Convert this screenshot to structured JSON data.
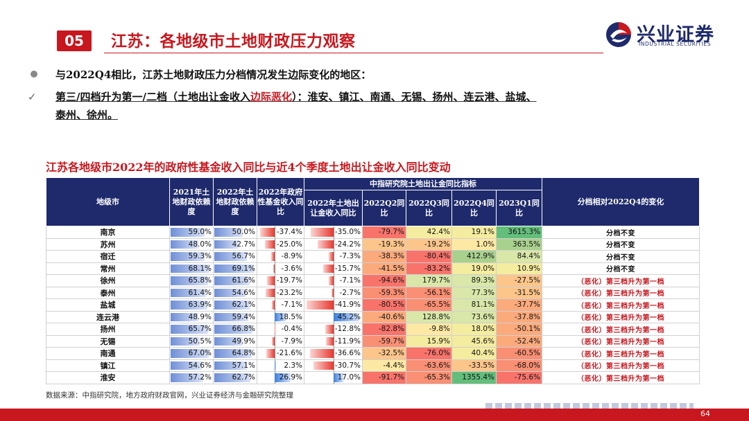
{
  "header": {
    "section_no": "05",
    "title": "江苏：各地级市土地财政压力观察",
    "logo_name": "兴业证券",
    "logo_sub": "INDUSTRIAL SECURITIES"
  },
  "bullets": {
    "b1": "与2022Q4相比，江苏土地财政压力分档情况发生边际变化的地区：",
    "b2_check": "✓",
    "b2_pre": "第三/四档升为第一/二档（土地出让金收入",
    "b2_red": "边际恶化",
    "b2_post": "）：淮安、镇江、南通、无锡、扬州、连云港、盐城、",
    "b2_line2": "泰州、徐州。"
  },
  "table": {
    "title": "江苏各地级市2022年的政府性基金收入同比与近4个季度土地出让金收入同比变动",
    "headers": {
      "city": "地级市",
      "dep2021": "2021年土地财政依赖度",
      "dep2022": "2022年土地财政依赖度",
      "fund2022": "2022年政府性基金收入同比",
      "group": "中指研究院土地出让金同比指标",
      "land2022": "2022年土地出让金收入同比",
      "q2": "2022Q2同比",
      "q3": "2022Q3同比",
      "q4": "2022Q4同比",
      "q1": "2023Q1同比",
      "change": "分档相对2022Q4的变化"
    },
    "rows": [
      {
        "city": "南京",
        "d21": "59.0%",
        "d21v": 59.0,
        "d22": "50.0%",
        "d22v": 50.0,
        "fund": "-37.4%",
        "fundv": -37.4,
        "land": "-35.0%",
        "landv": -35.0,
        "q2": "-79.7%",
        "q3": "42.4%",
        "q4": "19.1%",
        "q1": "3615.3%",
        "chg": "分档不变",
        "bad": false
      },
      {
        "city": "苏州",
        "d21": "48.0%",
        "d21v": 48.0,
        "d22": "42.7%",
        "d22v": 42.7,
        "fund": "-25.0%",
        "fundv": -25.0,
        "land": "-24.2%",
        "landv": -24.2,
        "q2": "-19.3%",
        "q3": "-19.2%",
        "q4": "1.0%",
        "q1": "363.5%",
        "chg": "分档不变",
        "bad": false
      },
      {
        "city": "宿迁",
        "d21": "59.3%",
        "d21v": 59.3,
        "d22": "56.7%",
        "d22v": 56.7,
        "fund": "-8.9%",
        "fundv": -8.9,
        "land": "-7.3%",
        "landv": -7.3,
        "q2": "-38.3%",
        "q3": "-80.4%",
        "q4": "412.9%",
        "q1": "84.4%",
        "chg": "分档不变",
        "bad": false
      },
      {
        "city": "常州",
        "d21": "68.1%",
        "d21v": 68.1,
        "d22": "69.1%",
        "d22v": 69.1,
        "fund": "-3.6%",
        "fundv": -3.6,
        "land": "-15.7%",
        "landv": -15.7,
        "q2": "-41.5%",
        "q3": "-83.2%",
        "q4": "19.0%",
        "q1": "10.9%",
        "chg": "分档不变",
        "bad": false
      },
      {
        "city": "徐州",
        "d21": "65.8%",
        "d21v": 65.8,
        "d22": "61.6%",
        "d22v": 61.6,
        "fund": "-19.7%",
        "fundv": -19.7,
        "land": "-7.1%",
        "landv": -7.1,
        "q2": "-94.6%",
        "q3": "179.7%",
        "q4": "89.3%",
        "q1": "-27.5%",
        "chg": "（恶化）第三档升为第一档",
        "bad": true
      },
      {
        "city": "泰州",
        "d21": "61.4%",
        "d21v": 61.4,
        "d22": "54.6%",
        "d22v": 54.6,
        "fund": "-23.2%",
        "fundv": -23.2,
        "land": "-2.7%",
        "landv": -2.7,
        "q2": "-59.3%",
        "q3": "-56.1%",
        "q4": "77.3%",
        "q1": "-31.5%",
        "chg": "（恶化）第三档升为第一档",
        "bad": true
      },
      {
        "city": "盐城",
        "d21": "63.9%",
        "d21v": 63.9,
        "d22": "62.1%",
        "d22v": 62.1,
        "fund": "-7.1%",
        "fundv": -7.1,
        "land": "-41.9%",
        "landv": -41.9,
        "q2": "-80.5%",
        "q3": "-65.5%",
        "q4": "81.1%",
        "q1": "-37.7%",
        "chg": "（恶化）第三档升为第一档",
        "bad": true
      },
      {
        "city": "连云港",
        "d21": "48.9%",
        "d21v": 48.9,
        "d22": "59.4%",
        "d22v": 59.4,
        "fund": "18.5%",
        "fundv": 18.5,
        "land": "45.2%",
        "landv": 45.2,
        "q2": "-40.6%",
        "q3": "128.8%",
        "q4": "73.6%",
        "q1": "-37.8%",
        "chg": "（恶化）第三档升为第一档",
        "bad": true
      },
      {
        "city": "扬州",
        "d21": "65.7%",
        "d21v": 65.7,
        "d22": "66.8%",
        "d22v": 66.8,
        "fund": "-0.4%",
        "fundv": -0.4,
        "land": "-12.8%",
        "landv": -12.8,
        "q2": "-82.8%",
        "q3": "-9.8%",
        "q4": "18.0%",
        "q1": "-50.1%",
        "chg": "（恶化）第三档升为第一档",
        "bad": true
      },
      {
        "city": "无锡",
        "d21": "50.5%",
        "d21v": 50.5,
        "d22": "49.9%",
        "d22v": 49.9,
        "fund": "-7.9%",
        "fundv": -7.9,
        "land": "-11.9%",
        "landv": -11.9,
        "q2": "-59.7%",
        "q3": "15.9%",
        "q4": "45.6%",
        "q1": "-52.4%",
        "chg": "（恶化）第三档升为第一档",
        "bad": true
      },
      {
        "city": "南通",
        "d21": "67.0%",
        "d21v": 67.0,
        "d22": "64.8%",
        "d22v": 64.8,
        "fund": "-21.6%",
        "fundv": -21.6,
        "land": "-36.6%",
        "landv": -36.6,
        "q2": "-32.5%",
        "q3": "-76.0%",
        "q4": "40.4%",
        "q1": "-60.5%",
        "chg": "（恶化）第三档升为第一档",
        "bad": true
      },
      {
        "city": "镇江",
        "d21": "54.6%",
        "d21v": 54.6,
        "d22": "57.1%",
        "d22v": 57.1,
        "fund": "2.3%",
        "fundv": 2.3,
        "land": "-30.7%",
        "landv": -30.7,
        "q2": "-4.4%",
        "q3": "-63.6%",
        "q4": "-33.5%",
        "q1": "-68.0%",
        "chg": "（恶化）第三档升为第一档",
        "bad": true
      },
      {
        "city": "淮安",
        "d21": "57.2%",
        "d21v": 57.2,
        "d22": "62.7%",
        "d22v": 62.7,
        "fund": "26.9%",
        "fundv": 26.9,
        "land": "17.0%",
        "landv": 17.0,
        "q2": "-91.7%",
        "q3": "-65.3%",
        "q4": "1355.4%",
        "q1": "-75.6%",
        "chg": "（恶化）第三档升为第一档",
        "bad": true
      }
    ]
  },
  "source": "数据来源：中指研究院，地方政府财政官网，兴业证券经济与金融研究院整理",
  "page_number": "64",
  "colors": {
    "brand_red": "#c8171e",
    "header_navy": "#1e2a6b"
  }
}
